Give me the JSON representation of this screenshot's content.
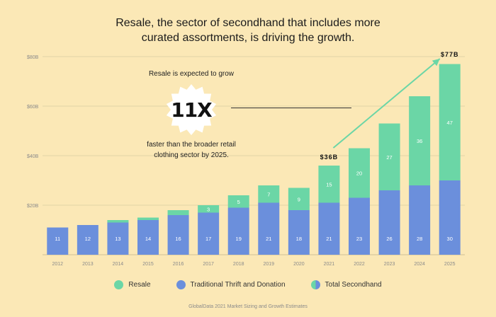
{
  "title_lines": [
    "Resale, the sector of secondhand that includes more",
    "curated assortments, is driving the growth."
  ],
  "callout": {
    "top_text": "Resale is expected to grow",
    "big_text": "11X",
    "bottom_lines": [
      "faster than the broader retail",
      "clothing sector by 2025."
    ]
  },
  "annotations": {
    "mark_2021": "$36B",
    "mark_2025": "$77B"
  },
  "legend": {
    "resale": "Resale",
    "thrift": "Traditional Thrift and Donation",
    "total": "Total Secondhand"
  },
  "source": "GlobalData 2021 Market Sizing and Growth Estimates",
  "colors": {
    "resale": "#6bd6a6",
    "thrift": "#6b8fdc",
    "arrow": "#6bd6a6",
    "background": "#fbe8b6"
  },
  "chart_data": {
    "type": "bar",
    "stacked": true,
    "categories": [
      "2012",
      "2013",
      "2014",
      "2015",
      "2016",
      "2017",
      "2018",
      "2019",
      "2020",
      "2021",
      "2022",
      "2023",
      "2024",
      "2025"
    ],
    "series": [
      {
        "name": "Traditional Thrift and Donation",
        "values": [
          11,
          12,
          13,
          14,
          16,
          17,
          19,
          21,
          18,
          21,
          23,
          26,
          28,
          30
        ]
      },
      {
        "name": "Resale",
        "values": [
          null,
          null,
          null,
          null,
          null,
          3,
          5,
          7,
          9,
          15,
          20,
          27,
          36,
          47
        ]
      }
    ],
    "segment_heights": {
      "thrift": [
        11,
        12,
        13,
        14,
        16,
        17,
        19,
        21,
        18,
        21,
        23,
        26,
        28,
        30
      ],
      "resale": [
        0,
        0,
        1,
        1,
        2,
        3,
        5,
        7,
        9,
        15,
        20,
        27,
        36,
        47
      ]
    },
    "ylabel_ticks": [
      "$80B",
      "$60B",
      "$40B",
      "$20B"
    ],
    "ytick_values": [
      80,
      60,
      40,
      20
    ],
    "ylim": [
      0,
      80
    ],
    "grid": true,
    "legend_position": "bottom-center"
  }
}
